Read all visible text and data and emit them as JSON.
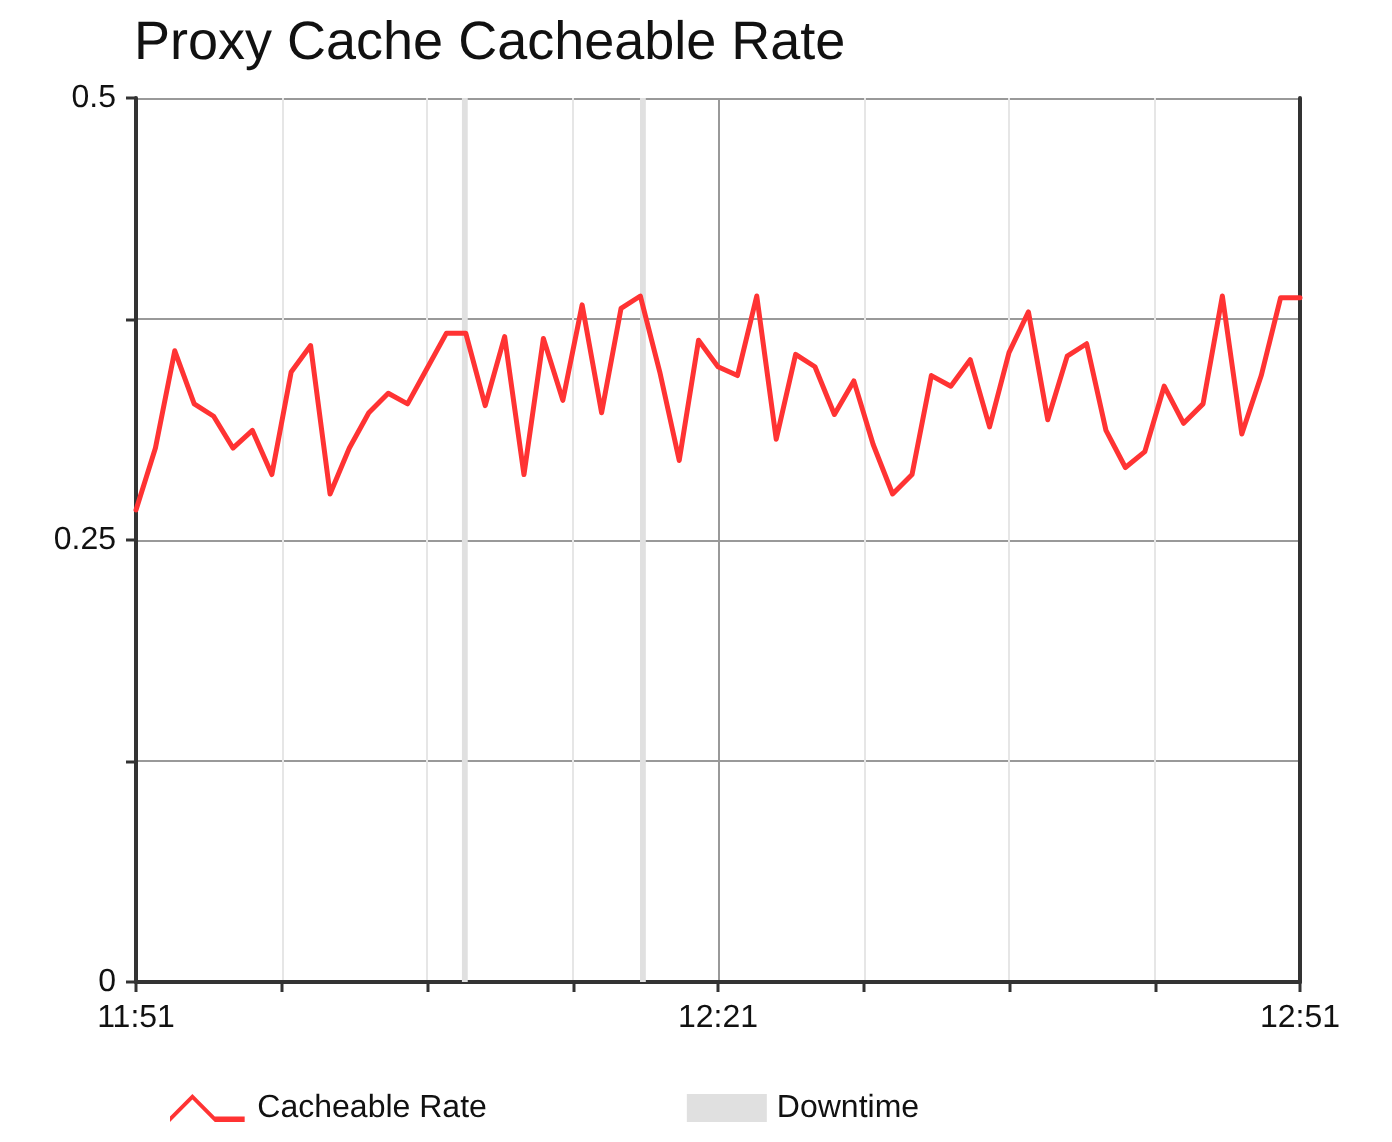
{
  "chart_data": {
    "type": "line",
    "title": "Proxy Cache Cacheable Rate",
    "x": [
      11.85,
      11.8667,
      11.8833,
      11.9,
      11.9167,
      11.9333,
      11.95,
      11.9667,
      11.9833,
      12,
      12.0167,
      12.0333,
      12.05,
      12.0667,
      12.0833,
      12.1,
      12.1167,
      12.1333,
      12.15,
      12.1667,
      12.1833,
      12.2,
      12.2167,
      12.2333,
      12.25,
      12.2667,
      12.2833,
      12.3,
      12.3167,
      12.3333,
      12.35,
      12.3667,
      12.3833,
      12.4,
      12.4167,
      12.4333,
      12.45,
      12.4667,
      12.4833,
      12.5,
      12.5167,
      12.5333,
      12.55,
      12.5667,
      12.5833,
      12.6,
      12.6167,
      12.6333,
      12.65,
      12.6667,
      12.6833,
      12.7,
      12.7167,
      12.7333,
      12.75,
      12.7667,
      12.7833,
      12.8,
      12.8167,
      12.8333,
      12.85
    ],
    "series": [
      {
        "name": "Cacheable Rate",
        "color": "#ff3333",
        "values": [
          0.267,
          0.302,
          0.357,
          0.327,
          0.32,
          0.302,
          0.312,
          0.287,
          0.345,
          0.36,
          0.276,
          0.302,
          0.322,
          0.333,
          0.327,
          0.347,
          0.367,
          0.367,
          0.326,
          0.365,
          0.287,
          0.364,
          0.329,
          0.383,
          0.322,
          0.381,
          0.388,
          0.345,
          0.295,
          0.363,
          0.348,
          0.343,
          0.388,
          0.307,
          0.355,
          0.348,
          0.321,
          0.34,
          0.304,
          0.276,
          0.287,
          0.343,
          0.337,
          0.352,
          0.314,
          0.356,
          0.379,
          0.318,
          0.354,
          0.361,
          0.312,
          0.291,
          0.3,
          0.337,
          0.316,
          0.327,
          0.388,
          0.31,
          0.343,
          0.387,
          0.387
        ]
      }
    ],
    "bands": [
      {
        "axis": "x",
        "from": 12.13,
        "to": 12.135,
        "label": "Downtime",
        "color": "#e0e0e0"
      },
      {
        "axis": "x",
        "from": 12.283,
        "to": 12.288,
        "color": "#e0e0e0"
      }
    ],
    "xlim": [
      11.85,
      12.85
    ],
    "xticks": [
      {
        "value": 11.85,
        "label": "11:51"
      },
      {
        "value": 11.975,
        "label": null
      },
      {
        "value": 12.1,
        "label": null
      },
      {
        "value": 12.225,
        "label": null
      },
      {
        "value": 12.35,
        "label": "12:21"
      },
      {
        "value": 12.475,
        "label": null
      },
      {
        "value": 12.6,
        "label": null
      },
      {
        "value": 12.725,
        "label": null
      },
      {
        "value": 12.85,
        "label": "12:51"
      }
    ],
    "ylim": [
      0,
      0.5
    ],
    "yticks": [
      0,
      {
        "value": 0.125,
        "label": null
      },
      0.25,
      {
        "value": 0.375,
        "label": null
      },
      0.5
    ],
    "grid": true,
    "legend": "bottom",
    "marker": "none",
    "line_style": "solid"
  }
}
